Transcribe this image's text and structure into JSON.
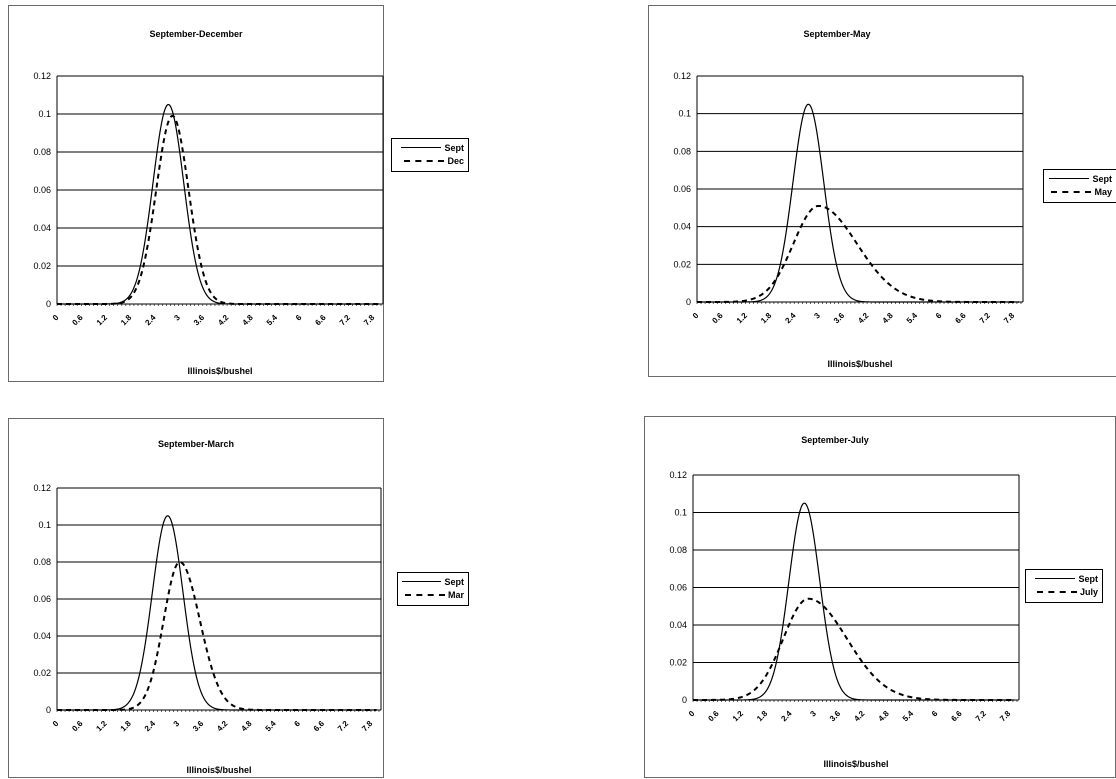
{
  "chart_data": [
    {
      "type": "line",
      "title": "September-December",
      "xlabel": "Illinois$/bushel",
      "ylabel": "",
      "ylim": [
        0,
        0.12
      ],
      "yticks": [
        "0",
        "0.02",
        "0.04",
        "0.06",
        "0.08",
        "0.1",
        "0.12"
      ],
      "xticks": [
        "0",
        "0.6",
        "1.2",
        "1.8",
        "2.4",
        "3",
        "3.6",
        "4.2",
        "4.8",
        "5.4",
        "6",
        "6.6",
        "7.2",
        "7.8"
      ],
      "legend_position": "right",
      "grid": true,
      "series": [
        {
          "name": "Sept",
          "style": "solid",
          "mean": 2.75,
          "sd": 0.38,
          "peak": 0.105
        },
        {
          "name": "Dec",
          "style": "dashed",
          "mean": 2.85,
          "sd": 0.4,
          "peak": 0.099
        }
      ]
    },
    {
      "type": "line",
      "title": "September-May",
      "xlabel": "Illinois$/bushel",
      "ylabel": "",
      "ylim": [
        0,
        0.12
      ],
      "yticks": [
        "0",
        "0.02",
        "0.04",
        "0.06",
        "0.08",
        "0.1",
        "0.12"
      ],
      "xticks": [
        "0",
        "0.6",
        "1.2",
        "1.8",
        "2.4",
        "3",
        "3.6",
        "4.2",
        "4.8",
        "5.4",
        "6",
        "6.6",
        "7.2",
        "7.8"
      ],
      "legend_position": "right",
      "grid": true,
      "series": [
        {
          "name": "Sept",
          "style": "solid",
          "mean": 2.75,
          "sd": 0.38,
          "peak": 0.105
        },
        {
          "name": "May",
          "style": "dashed",
          "mean": 3.0,
          "sd": 0.62,
          "sd_right": 0.95,
          "peak": 0.051
        }
      ]
    },
    {
      "type": "line",
      "title": "September-March",
      "xlabel": "Illinois$/bushel",
      "ylabel": "",
      "ylim": [
        0,
        0.12
      ],
      "yticks": [
        "0",
        "0.02",
        "0.04",
        "0.06",
        "0.08",
        "0.1",
        "0.12"
      ],
      "xticks": [
        "0",
        "0.6",
        "1.2",
        "1.8",
        "2.4",
        "3",
        "3.6",
        "4.2",
        "4.8",
        "5.4",
        "6",
        "6.6",
        "7.2",
        "7.8"
      ],
      "legend_position": "right",
      "grid": true,
      "series": [
        {
          "name": "Sept",
          "style": "solid",
          "mean": 2.75,
          "sd": 0.38,
          "peak": 0.105
        },
        {
          "name": "Mar",
          "style": "dashed",
          "mean": 3.05,
          "sd": 0.4,
          "sd_right": 0.5,
          "peak": 0.08
        }
      ]
    },
    {
      "type": "line",
      "title": "September-July",
      "xlabel": "Illinois$/bushel",
      "ylabel": "",
      "ylim": [
        0,
        0.12
      ],
      "yticks": [
        "0",
        "0.02",
        "0.04",
        "0.06",
        "0.08",
        "0.1",
        "0.12"
      ],
      "xticks": [
        "0",
        "0.6",
        "1.2",
        "1.8",
        "2.4",
        "3",
        "3.6",
        "4.2",
        "4.8",
        "5.4",
        "6",
        "6.6",
        "7.2",
        "7.8"
      ],
      "legend_position": "right",
      "grid": true,
      "series": [
        {
          "name": "Sept",
          "style": "solid",
          "mean": 2.75,
          "sd": 0.38,
          "peak": 0.105
        },
        {
          "name": "July",
          "style": "dashed",
          "mean": 2.85,
          "sd": 0.62,
          "sd_right": 0.95,
          "peak": 0.054
        }
      ]
    }
  ]
}
